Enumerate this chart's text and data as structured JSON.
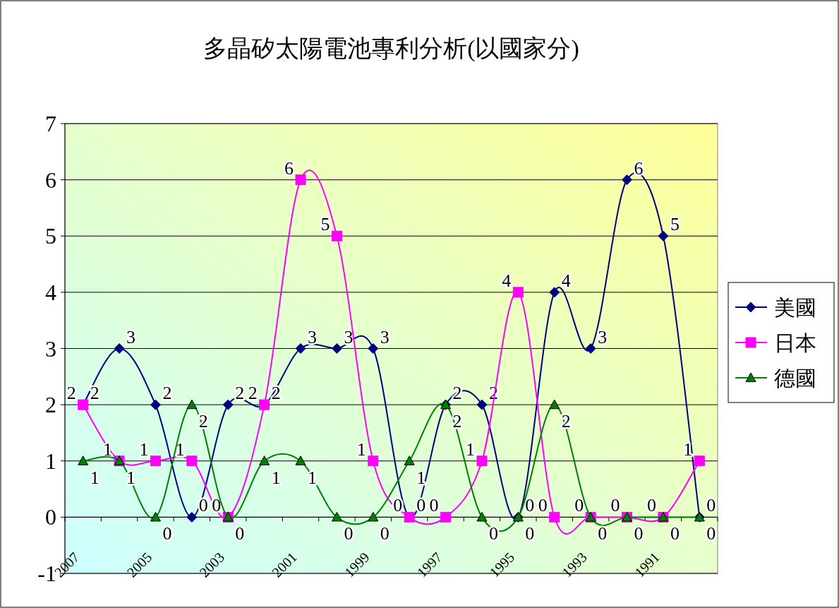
{
  "chart_data": {
    "type": "line",
    "title": "多晶矽太陽電池專利分析(以國家分)",
    "categories": [
      "2007",
      null,
      "2005",
      null,
      "2003",
      null,
      "2001",
      null,
      "1999",
      null,
      "1997",
      null,
      "1995",
      null,
      "1993",
      null,
      "1991",
      null
    ],
    "series": [
      {
        "name": "美國",
        "color": "#000080",
        "marker": "diamond",
        "values": [
          2,
          3,
          2,
          0,
          2,
          2,
          3,
          3,
          3,
          0,
          2,
          2,
          0,
          4,
          3,
          6,
          5,
          0
        ]
      },
      {
        "name": "日本",
        "color": "#ff00ff",
        "marker": "square",
        "values": [
          2,
          1,
          1,
          1,
          0,
          2,
          6,
          5,
          1,
          0,
          0,
          1,
          4,
          0,
          0,
          0,
          0,
          1
        ]
      },
      {
        "name": "德國",
        "color": "#008000",
        "marker": "triangle",
        "values": [
          1,
          1,
          0,
          2,
          0,
          1,
          1,
          0,
          0,
          1,
          2,
          0,
          0,
          2,
          0,
          0,
          0,
          0
        ]
      }
    ],
    "ylim": [
      -1,
      7
    ],
    "yticks": [
      -1,
      0,
      1,
      2,
      3,
      4,
      5,
      6,
      7
    ],
    "grid": "y",
    "legend": "right",
    "data_labels": true
  }
}
